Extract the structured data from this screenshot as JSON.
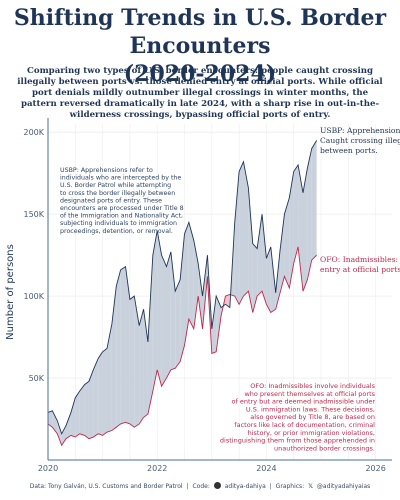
{
  "title_line1": "Shifting Trends in U.S. Border Encounters",
  "title_line2": "(2020-2024)",
  "subtitle": "Comparing two types of U.S. border encounters: people caught crossing illegally between ports vs. those denied entry at official ports. While official port denials mildly outnumber illegal crossings in winter months, the pattern reversed dramatically in late 2024, with a sharp rise in out-in-the-wilderness crossings, bypassing official ports of entry.",
  "caption": {
    "data": "Data: Tony Galván, U.S. Customs and Border Patrol",
    "code_label": "Code:",
    "code_handle": "aditya-dahiya",
    "graphics_label": "Graphics:",
    "graphics_handle": "@adityadahiyaias"
  },
  "colors": {
    "usbp": "#1f3557",
    "usbp_fill": "#c9d1dc",
    "ofo": "#c0284b",
    "ofo_fill": "#f0c4cf",
    "grid": "#ececec",
    "axis": "#4a6c9b"
  },
  "chart_data": {
    "type": "area",
    "xlabel": "",
    "ylabel": "Number of persons",
    "xlim": [
      2020.0,
      2026.3
    ],
    "ylim": [
      0,
      205000
    ],
    "x_ticks": [
      2020,
      2022,
      2024,
      2026
    ],
    "x_tick_labels": [
      "2020",
      "2022",
      "2024",
      "2026"
    ],
    "y_ticks": [
      50000,
      100000,
      150000,
      200000
    ],
    "y_tick_labels": [
      "50K",
      "100K",
      "150K",
      "200K"
    ],
    "grid": true,
    "series": [
      {
        "name": "USBP: Apprehensions",
        "x": [
          2020.0,
          2020.08,
          2020.17,
          2020.25,
          2020.33,
          2020.42,
          2020.5,
          2020.58,
          2020.67,
          2020.75,
          2020.83,
          2020.92,
          2021.0,
          2021.08,
          2021.17,
          2021.25,
          2021.33,
          2021.42,
          2021.5,
          2021.58,
          2021.67,
          2021.75,
          2021.83,
          2021.92,
          2022.0,
          2022.08,
          2022.17,
          2022.25,
          2022.33,
          2022.42,
          2022.5,
          2022.58,
          2022.67,
          2022.75,
          2022.83,
          2022.92,
          2023.0,
          2023.08,
          2023.17,
          2023.25,
          2023.33,
          2023.42,
          2023.5,
          2023.58,
          2023.67,
          2023.75,
          2023.83,
          2023.92,
          2024.0,
          2024.08,
          2024.17,
          2024.25,
          2024.33,
          2024.42,
          2024.5,
          2024.58,
          2024.67,
          2024.75,
          2024.83,
          2024.92
        ],
        "values": [
          29000,
          30000,
          24000,
          16000,
          21000,
          29000,
          38000,
          42000,
          46000,
          48000,
          55000,
          62000,
          66000,
          68000,
          83000,
          106000,
          116000,
          118000,
          98000,
          100000,
          82000,
          92000,
          72000,
          125000,
          140000,
          125000,
          118000,
          127000,
          103000,
          110000,
          138000,
          145000,
          134000,
          120000,
          100000,
          125000,
          80000,
          100000,
          93000,
          95000,
          93000,
          145000,
          176000,
          182000,
          166000,
          132000,
          129000,
          150000,
          123000,
          130000,
          102000,
          128000,
          150000,
          160000,
          176000,
          180000,
          163000,
          178000,
          190000,
          195000
        ]
      },
      {
        "name": "OFO: Inadmissibles",
        "x": [
          2020.0,
          2020.08,
          2020.17,
          2020.25,
          2020.33,
          2020.42,
          2020.5,
          2020.58,
          2020.67,
          2020.75,
          2020.83,
          2020.92,
          2021.0,
          2021.08,
          2021.17,
          2021.25,
          2021.33,
          2021.42,
          2021.5,
          2021.58,
          2021.67,
          2021.75,
          2021.83,
          2021.92,
          2022.0,
          2022.08,
          2022.17,
          2022.25,
          2022.33,
          2022.42,
          2022.5,
          2022.58,
          2022.67,
          2022.75,
          2022.83,
          2022.92,
          2023.0,
          2023.08,
          2023.17,
          2023.25,
          2023.33,
          2023.42,
          2023.5,
          2023.58,
          2023.67,
          2023.75,
          2023.83,
          2023.92,
          2024.0,
          2024.08,
          2024.17,
          2024.25,
          2024.33,
          2024.42,
          2024.5,
          2024.58,
          2024.67,
          2024.75,
          2024.83,
          2024.92
        ],
        "values": [
          22000,
          20000,
          16000,
          9000,
          13000,
          15000,
          14000,
          16000,
          15000,
          13000,
          14000,
          16000,
          15000,
          17000,
          18000,
          20000,
          22000,
          23000,
          22000,
          20000,
          22000,
          26000,
          28000,
          42000,
          55000,
          45000,
          50000,
          55000,
          56000,
          60000,
          70000,
          86000,
          80000,
          100000,
          80000,
          112000,
          65000,
          66000,
          88000,
          100000,
          101000,
          100000,
          95000,
          100000,
          103000,
          90000,
          100000,
          103000,
          95000,
          90000,
          92000,
          102000,
          112000,
          105000,
          120000,
          130000,
          103000,
          110000,
          122000,
          125000
        ]
      }
    ],
    "annotations": [
      {
        "id": "usbp_label",
        "text": [
          "USBP: Apprehensions:",
          "Caught crossing illegally",
          "between ports."
        ]
      },
      {
        "id": "ofo_label",
        "text": [
          "OFO: Inadmissibles: Denied",
          "entry at official ports."
        ]
      },
      {
        "id": "usbp_note",
        "text": [
          "USBP: Apprehensions refer to",
          "individuals who are intercepted by the",
          "U.S. Border Patrol while attempting",
          "to cross the border illegally between",
          "designated ports of entry. These",
          "encounters are processed under Title 8",
          "of the Immigration and Nationality Act,",
          "subjecting individuals to immigration",
          "proceedings, detention, or removal."
        ]
      },
      {
        "id": "ofo_note",
        "text": [
          "OFO: Inadmissibles involve individuals",
          "who present themselves at official ports",
          "of entry but are deemed inadmissible under",
          "U.S. immigration laws. These decisions,",
          "also governed by Title 8, are based on",
          "factors like lack of documentation, criminal",
          "history, or prior immigration violations,",
          "distinguishing them from those apprehended in",
          "unauthorized border crossings."
        ]
      }
    ]
  }
}
